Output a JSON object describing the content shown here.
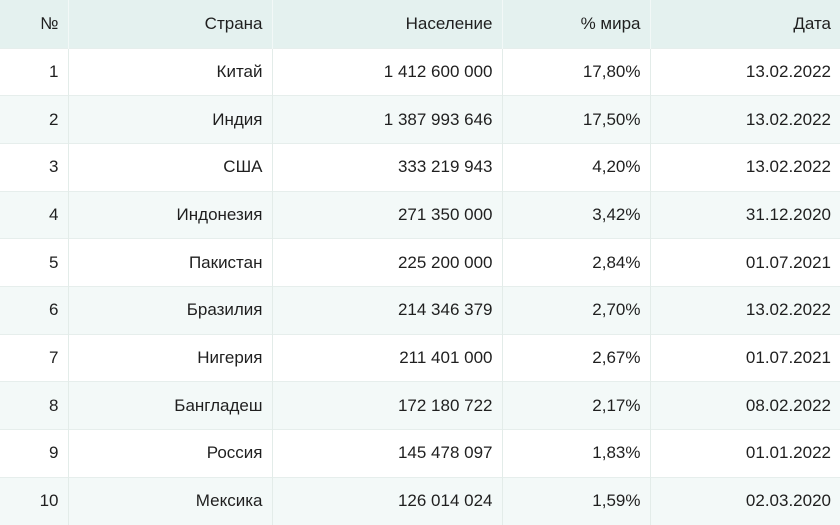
{
  "table": {
    "headers": {
      "num": "№",
      "country": "Страна",
      "population": "Население",
      "share": "% мира",
      "date": "Дата"
    },
    "rows": [
      {
        "num": "1",
        "country": "Китай",
        "population": "1 412 600 000",
        "share": "17,80%",
        "date": "13.02.2022"
      },
      {
        "num": "2",
        "country": "Индия",
        "population": "1 387 993 646",
        "share": "17,50%",
        "date": "13.02.2022"
      },
      {
        "num": "3",
        "country": "США",
        "population": "333 219 943",
        "share": "4,20%",
        "date": "13.02.2022"
      },
      {
        "num": "4",
        "country": "Индонезия",
        "population": "271 350 000",
        "share": "3,42%",
        "date": "31.12.2020"
      },
      {
        "num": "5",
        "country": "Пакистан",
        "population": "225 200 000",
        "share": "2,84%",
        "date": "01.07.2021"
      },
      {
        "num": "6",
        "country": "Бразилия",
        "population": "214 346 379",
        "share": "2,70%",
        "date": "13.02.2022"
      },
      {
        "num": "7",
        "country": "Нигерия",
        "population": "211 401 000",
        "share": "2,67%",
        "date": "01.07.2021"
      },
      {
        "num": "8",
        "country": "Бангладеш",
        "population": "172 180 722",
        "share": "2,17%",
        "date": "08.02.2022"
      },
      {
        "num": "9",
        "country": "Россия",
        "population": "145 478 097",
        "share": "1,83%",
        "date": "01.01.2022"
      },
      {
        "num": "10",
        "country": "Мексика",
        "population": "126 014 024",
        "share": "1,59%",
        "date": "02.03.2020"
      }
    ]
  },
  "colors": {
    "header_bg": "#e4f1ef",
    "stripe_bg": "#f3f9f8",
    "text": "#1f1f1f"
  }
}
